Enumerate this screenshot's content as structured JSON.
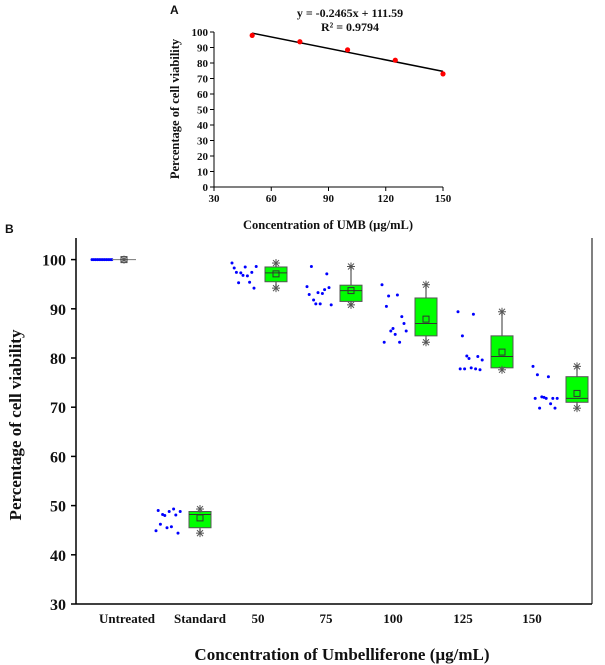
{
  "chart_data": [
    {
      "panel_label": "A",
      "type": "scatter",
      "xlabel": "Concentration of UMB (µg/mL)",
      "ylabel": "Percentage of cell viability",
      "xlim": [
        30,
        150
      ],
      "ylim": [
        0,
        100
      ],
      "xticks": [
        30,
        60,
        90,
        120,
        150
      ],
      "yticks": [
        0,
        10,
        20,
        30,
        40,
        50,
        60,
        70,
        80,
        90,
        100
      ],
      "x": [
        50,
        75,
        100,
        125,
        150
      ],
      "y": [
        97.8,
        93.7,
        88.5,
        81.8,
        73.0
      ],
      "trendline": {
        "slope": -0.2465,
        "intercept": 111.59
      },
      "annotations": [
        "y = -0.2465x + 111.59",
        "R² = 0.9794"
      ],
      "point_color": "#ff0000",
      "grid": false
    },
    {
      "panel_label": "B",
      "type": "box",
      "xlabel": "Concentration of Umbelliferone (µg/mL)",
      "ylabel": "Percentage of cell viability",
      "ylim": [
        30,
        105
      ],
      "yticks": [
        30,
        40,
        50,
        60,
        70,
        80,
        90,
        100
      ],
      "categories": [
        "Untreated",
        "Standard",
        "50",
        "75",
        "100",
        "125",
        "150"
      ],
      "boxes": [
        {
          "q1": 100,
          "median": 100,
          "q3": 100,
          "mean": 100,
          "min": 100,
          "max": 100,
          "points": [
            100,
            100,
            100,
            100,
            100,
            100,
            100,
            100,
            100,
            100,
            100,
            100
          ]
        },
        {
          "q1": 45.5,
          "median": 48.2,
          "q3": 48.8,
          "mean": 47.5,
          "min": 44.4,
          "max": 49.3,
          "points": [
            44.9,
            45.7,
            46.2,
            48.1,
            48.0,
            48.8,
            48.8,
            49.0,
            49.3,
            48.2,
            44.4,
            45.5
          ]
        },
        {
          "q1": 95.5,
          "median": 97.3,
          "q3": 98.5,
          "mean": 97.1,
          "min": 94.2,
          "max": 99.3,
          "points": [
            99.3,
            96.7,
            97.4,
            97.4,
            97.3,
            98.6,
            98.5,
            98.3,
            95.4,
            95.3,
            94.2,
            96.8
          ]
        },
        {
          "q1": 91.5,
          "median": 93.7,
          "q3": 94.8,
          "mean": 93.7,
          "min": 90.8,
          "max": 98.6,
          "points": [
            94.5,
            93.1,
            98.6,
            97.1,
            91.0,
            90.8,
            91.0,
            92.9,
            93.9,
            91.8,
            94.3,
            93.3
          ]
        },
        {
          "q1": 84.5,
          "median": 87.0,
          "q3": 92.2,
          "mean": 87.9,
          "min": 83.2,
          "max": 94.9,
          "points": [
            94.9,
            92.8,
            90.5,
            88.4,
            85.5,
            85.5,
            84.8,
            83.2,
            83.2,
            92.6,
            87.0,
            86.0
          ]
        },
        {
          "q1": 78.0,
          "median": 80.3,
          "q3": 84.5,
          "mean": 81.2,
          "min": 77.6,
          "max": 89.4,
          "points": [
            89.4,
            88.9,
            84.5,
            80.3,
            80.4,
            79.6,
            78.0,
            77.8,
            77.8,
            77.8,
            77.6,
            79.9
          ]
        },
        {
          "q1": 71.0,
          "median": 71.8,
          "q3": 76.2,
          "mean": 72.8,
          "min": 69.8,
          "max": 78.3,
          "points": [
            78.3,
            76.2,
            76.6,
            71.8,
            72.1,
            71.8,
            71.8,
            71.8,
            70.7,
            69.8,
            69.8,
            72.0
          ]
        }
      ],
      "box_color": "#00ff00",
      "point_color": "#0000ff",
      "grid": false
    }
  ]
}
